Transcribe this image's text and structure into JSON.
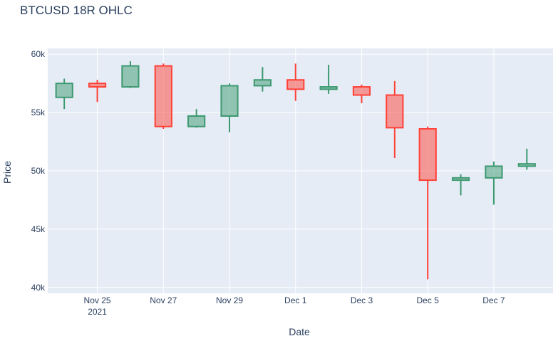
{
  "chart_data": {
    "type": "candlestick",
    "title": "BTCUSD 18R OHLC",
    "xlabel": "Date",
    "ylabel": "Price",
    "ylim": [
      39500,
      60500
    ],
    "xlim": [
      "2021-11-23T12:00",
      "2021-12-08T19:00"
    ],
    "yticks": [
      40000,
      45000,
      50000,
      55000,
      60000
    ],
    "ytick_labels": [
      "40k",
      "45k",
      "50k",
      "55k",
      "60k"
    ],
    "xticks": [
      "2021-11-25",
      "2021-11-27",
      "2021-11-29",
      "2021-12-01",
      "2021-12-03",
      "2021-12-05",
      "2021-12-07"
    ],
    "xtick_labels": [
      "Nov 25",
      "Nov 27",
      "Nov 29",
      "Dec 1",
      "Dec 3",
      "Dec 5",
      "Dec 7"
    ],
    "xtick_sublabel": "2021",
    "grid": true,
    "colors": {
      "increasing": "#3d9970",
      "increasing_fill": "rgba(61,153,112,0.5)",
      "decreasing": "#ff4136",
      "decreasing_fill": "rgba(255,65,54,0.5)",
      "plot_bg": "#e5ecf6",
      "grid": "#ffffff"
    },
    "candles": [
      {
        "date": "2021-11-24T00:00",
        "open": 56300,
        "high": 57900,
        "low": 55300,
        "close": 57500
      },
      {
        "date": "2021-11-25T00:00",
        "open": 57500,
        "high": 57800,
        "low": 55900,
        "close": 57200
      },
      {
        "date": "2021-11-26T00:00",
        "open": 57200,
        "high": 59400,
        "low": 57100,
        "close": 59000
      },
      {
        "date": "2021-11-27T00:00",
        "open": 59000,
        "high": 59200,
        "low": 53600,
        "close": 53800
      },
      {
        "date": "2021-11-28T00:00",
        "open": 53800,
        "high": 55300,
        "low": 53700,
        "close": 54700
      },
      {
        "date": "2021-11-29T00:00",
        "open": 54700,
        "high": 57500,
        "low": 53300,
        "close": 57300
      },
      {
        "date": "2021-11-30T00:00",
        "open": 57300,
        "high": 58900,
        "low": 56800,
        "close": 57800
      },
      {
        "date": "2021-12-01T00:00",
        "open": 57800,
        "high": 59200,
        "low": 56000,
        "close": 57000
      },
      {
        "date": "2021-12-02T00:00",
        "open": 57000,
        "high": 59100,
        "low": 56600,
        "close": 57200
      },
      {
        "date": "2021-12-03T00:00",
        "open": 57200,
        "high": 57400,
        "low": 55800,
        "close": 56500
      },
      {
        "date": "2021-12-04T00:00",
        "open": 56500,
        "high": 57700,
        "low": 51100,
        "close": 53700
      },
      {
        "date": "2021-12-05T00:00",
        "open": 53600,
        "high": 53800,
        "low": 40700,
        "close": 49200
      },
      {
        "date": "2021-12-06T00:00",
        "open": 49200,
        "high": 49700,
        "low": 47900,
        "close": 49400
      },
      {
        "date": "2021-12-07T00:00",
        "open": 49400,
        "high": 50800,
        "low": 47100,
        "close": 50400
      },
      {
        "date": "2021-12-08T00:00",
        "open": 50400,
        "high": 51900,
        "low": 50100,
        "close": 50600
      }
    ]
  }
}
